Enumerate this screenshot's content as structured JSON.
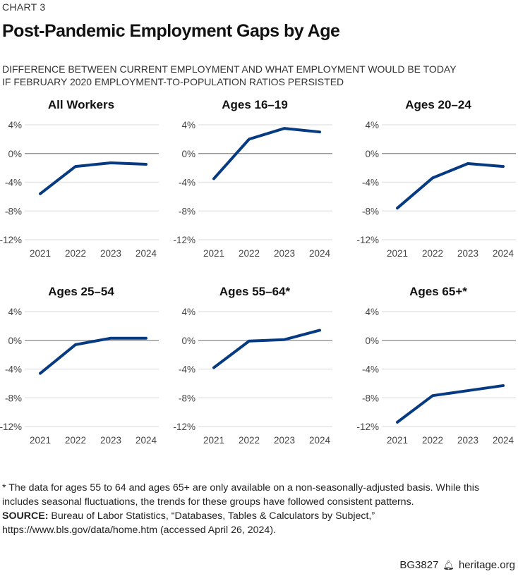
{
  "kicker": "CHART 3",
  "title": "Post-Pandemic Employment Gaps by Age",
  "subtitle_lines": [
    "DIFFERENCE BETWEEN CURRENT EMPLOYMENT AND WHAT EMPLOYMENT WOULD BE TODAY",
    "IF FEBRUARY 2020 EMPLOYMENT-TO-POPULATION RATIOS PERSISTED"
  ],
  "chart_data": [
    {
      "type": "line",
      "title": "All Workers",
      "categories": [
        "2021",
        "2022",
        "2023",
        "2024"
      ],
      "values": [
        -5.6,
        -1.8,
        -1.3,
        -1.5
      ],
      "ylim": [
        -12,
        4
      ],
      "yticks": [
        "4%",
        "0%",
        "-4%",
        "-8%",
        "-12%"
      ],
      "grid": true
    },
    {
      "type": "line",
      "title": "Ages 16–19",
      "categories": [
        "2021",
        "2022",
        "2023",
        "2024"
      ],
      "values": [
        -3.5,
        2.0,
        3.5,
        3.0
      ],
      "ylim": [
        -12,
        4
      ],
      "yticks": [
        "4%",
        "0%",
        "-4%",
        "-8%",
        "-12%"
      ],
      "grid": true
    },
    {
      "type": "line",
      "title": "Ages 20–24",
      "categories": [
        "2021",
        "2022",
        "2023",
        "2024"
      ],
      "values": [
        -7.6,
        -3.4,
        -1.4,
        -1.8
      ],
      "ylim": [
        -12,
        4
      ],
      "yticks": [
        "4%",
        "0%",
        "-4%",
        "-8%",
        "-12%"
      ],
      "grid": true
    },
    {
      "type": "line",
      "title": "Ages 25–54",
      "categories": [
        "2021",
        "2022",
        "2023",
        "2024"
      ],
      "values": [
        -4.6,
        -0.6,
        0.3,
        0.3
      ],
      "ylim": [
        -12,
        4
      ],
      "yticks": [
        "4%",
        "0%",
        "-4%",
        "-8%",
        "-12%"
      ],
      "grid": true
    },
    {
      "type": "line",
      "title": "Ages 55–64*",
      "categories": [
        "2021",
        "2022",
        "2023",
        "2024"
      ],
      "values": [
        -3.8,
        -0.1,
        0.1,
        1.4
      ],
      "ylim": [
        -12,
        4
      ],
      "yticks": [
        "4%",
        "0%",
        "-4%",
        "-8%",
        "-12%"
      ],
      "grid": true
    },
    {
      "type": "line",
      "title": "Ages 65+*",
      "categories": [
        "2021",
        "2022",
        "2023",
        "2024"
      ],
      "values": [
        -11.4,
        -7.7,
        -7.0,
        -6.3
      ],
      "ylim": [
        -12,
        4
      ],
      "yticks": [
        "4%",
        "0%",
        "-4%",
        "-8%",
        "-12%"
      ],
      "grid": true
    }
  ],
  "colors": {
    "line": "#063a82",
    "grid": "#e6e6e6",
    "zero": "#888888"
  },
  "footnote": "* The data for ages 55 to 64 and ages 65+ are only available on a non-seasonally-adjusted basis. While this includes seasonal fluctuations, the trends for these groups have followed consistent patterns.",
  "source_label": "SOURCE:",
  "source_text": " Bureau of Labor Statistics, “Databases, Tables & Calculators by Subject,” https://www.bls.gov/data/home.htm (accessed April 26, 2024).",
  "footer": {
    "code": "BG3827",
    "icon": "liberty-bell-icon",
    "site": "heritage.org"
  }
}
